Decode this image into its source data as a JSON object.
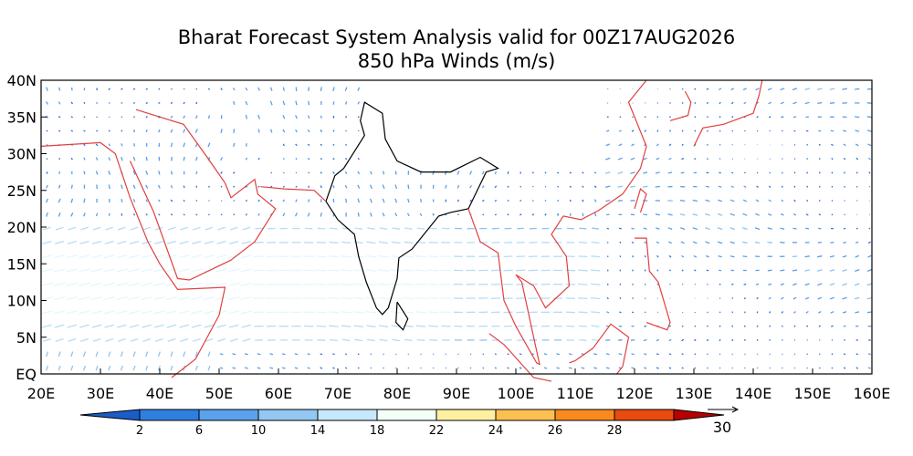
{
  "title": "Bharat Forecast System Analysis valid for 00Z17AUG2026",
  "subtitle": "850 hPa Winds (m/s)",
  "lon_labels": [
    "20E",
    "30E",
    "40E",
    "50E",
    "60E",
    "70E",
    "80E",
    "90E",
    "100E",
    "110E",
    "120E",
    "130E",
    "140E",
    "150E",
    "160E"
  ],
  "lat_labels": [
    "EQ",
    "5N",
    "10N",
    "15N",
    "20N",
    "25N",
    "30N",
    "35N",
    "40N"
  ],
  "colorbar": {
    "labels": [
      2,
      6,
      10,
      14,
      18,
      22,
      24,
      26,
      28
    ],
    "colors": [
      "#1a5cc8",
      "#2f7fe0",
      "#5aa2ec",
      "#92c8f2",
      "#c6e8fa",
      "#f2fff6",
      "#fff0a0",
      "#fcc050",
      "#f88a20",
      "#e84a10",
      "#b80000"
    ]
  },
  "reference_vector": {
    "label": "30"
  }
}
